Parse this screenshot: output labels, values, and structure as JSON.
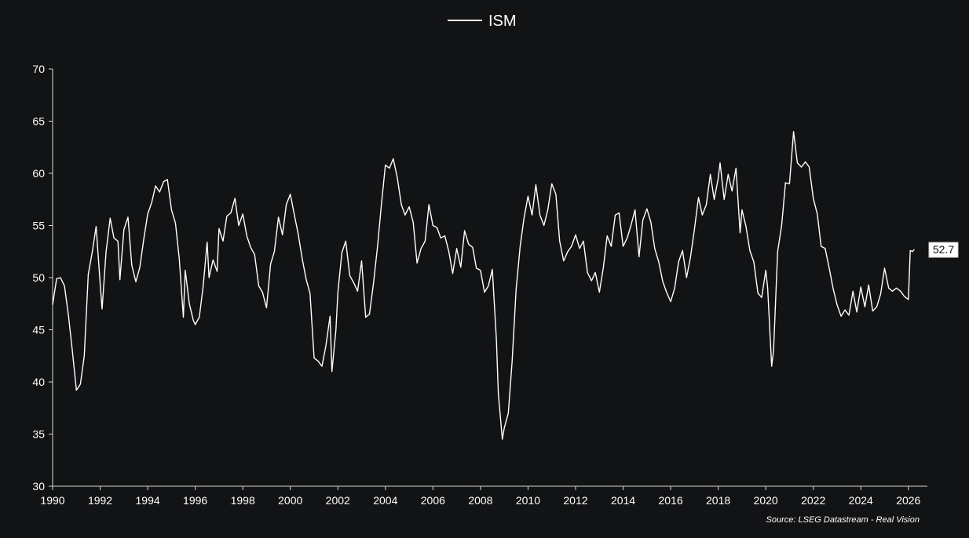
{
  "colors": {
    "background": "#121315",
    "line": "#ffffff",
    "axis": "#d8d8d8",
    "text": "#ffffff"
  },
  "chart_data": {
    "type": "line",
    "title": "",
    "xlabel": "",
    "ylabel": "",
    "legend": {
      "position": "top-center",
      "entries": [
        "ISM"
      ]
    },
    "grid": false,
    "xlim": [
      1990,
      2026.8
    ],
    "ylim": [
      30,
      70
    ],
    "x_ticks": [
      1990,
      1992,
      1994,
      1996,
      1998,
      2000,
      2002,
      2004,
      2006,
      2008,
      2010,
      2012,
      2014,
      2016,
      2018,
      2020,
      2022,
      2024,
      2026
    ],
    "y_ticks": [
      30,
      35,
      40,
      45,
      50,
      55,
      60,
      65,
      70
    ],
    "last_value_label": "52.7",
    "source": "Source: LSEG Datastream - Real Vision",
    "series": [
      {
        "name": "ISM",
        "points": [
          [
            1990.0,
            47.4
          ],
          [
            1990.17,
            49.9
          ],
          [
            1990.33,
            50.0
          ],
          [
            1990.5,
            49.2
          ],
          [
            1990.67,
            46.3
          ],
          [
            1990.83,
            43.0
          ],
          [
            1991.0,
            39.2
          ],
          [
            1991.17,
            39.8
          ],
          [
            1991.33,
            42.5
          ],
          [
            1991.5,
            50.3
          ],
          [
            1991.67,
            52.5
          ],
          [
            1991.83,
            54.9
          ],
          [
            1992.0,
            49.5
          ],
          [
            1992.08,
            47.0
          ],
          [
            1992.25,
            52.5
          ],
          [
            1992.42,
            55.7
          ],
          [
            1992.58,
            53.8
          ],
          [
            1992.75,
            53.5
          ],
          [
            1992.83,
            49.8
          ],
          [
            1993.0,
            54.6
          ],
          [
            1993.17,
            55.8
          ],
          [
            1993.33,
            51.2
          ],
          [
            1993.5,
            49.6
          ],
          [
            1993.67,
            51.0
          ],
          [
            1993.83,
            53.6
          ],
          [
            1994.0,
            56.1
          ],
          [
            1994.17,
            57.2
          ],
          [
            1994.33,
            58.8
          ],
          [
            1994.5,
            58.2
          ],
          [
            1994.67,
            59.2
          ],
          [
            1994.83,
            59.4
          ],
          [
            1995.0,
            56.5
          ],
          [
            1995.17,
            55.2
          ],
          [
            1995.33,
            51.8
          ],
          [
            1995.5,
            46.2
          ],
          [
            1995.58,
            50.7
          ],
          [
            1995.75,
            47.5
          ],
          [
            1995.92,
            45.9
          ],
          [
            1996.0,
            45.5
          ],
          [
            1996.17,
            46.2
          ],
          [
            1996.33,
            49.1
          ],
          [
            1996.5,
            53.4
          ],
          [
            1996.58,
            50.0
          ],
          [
            1996.75,
            51.7
          ],
          [
            1996.92,
            50.6
          ],
          [
            1997.0,
            54.7
          ],
          [
            1997.17,
            53.5
          ],
          [
            1997.33,
            55.9
          ],
          [
            1997.5,
            56.2
          ],
          [
            1997.67,
            57.6
          ],
          [
            1997.83,
            55.0
          ],
          [
            1998.0,
            56.1
          ],
          [
            1998.17,
            54.0
          ],
          [
            1998.33,
            52.9
          ],
          [
            1998.5,
            52.2
          ],
          [
            1998.67,
            49.2
          ],
          [
            1998.83,
            48.6
          ],
          [
            1999.0,
            47.1
          ],
          [
            1999.17,
            51.3
          ],
          [
            1999.33,
            52.5
          ],
          [
            1999.5,
            55.8
          ],
          [
            1999.67,
            54.1
          ],
          [
            1999.83,
            57.0
          ],
          [
            2000.0,
            58.0
          ],
          [
            2000.17,
            56.0
          ],
          [
            2000.33,
            54.2
          ],
          [
            2000.5,
            51.8
          ],
          [
            2000.67,
            49.8
          ],
          [
            2000.83,
            48.5
          ],
          [
            2001.0,
            42.3
          ],
          [
            2001.17,
            42.0
          ],
          [
            2001.33,
            41.5
          ],
          [
            2001.5,
            43.5
          ],
          [
            2001.67,
            46.3
          ],
          [
            2001.75,
            41.0
          ],
          [
            2001.92,
            45.0
          ],
          [
            2002.0,
            48.6
          ],
          [
            2002.17,
            52.4
          ],
          [
            2002.33,
            53.5
          ],
          [
            2002.5,
            50.2
          ],
          [
            2002.67,
            49.5
          ],
          [
            2002.83,
            48.7
          ],
          [
            2003.0,
            51.6
          ],
          [
            2003.17,
            46.2
          ],
          [
            2003.33,
            46.5
          ],
          [
            2003.5,
            49.5
          ],
          [
            2003.67,
            53.0
          ],
          [
            2003.83,
            57.0
          ],
          [
            2004.0,
            60.8
          ],
          [
            2004.17,
            60.5
          ],
          [
            2004.33,
            61.4
          ],
          [
            2004.5,
            59.6
          ],
          [
            2004.67,
            57.0
          ],
          [
            2004.83,
            56.0
          ],
          [
            2005.0,
            56.8
          ],
          [
            2005.17,
            55.3
          ],
          [
            2005.33,
            51.4
          ],
          [
            2005.5,
            52.8
          ],
          [
            2005.67,
            53.5
          ],
          [
            2005.83,
            57.0
          ],
          [
            2006.0,
            55.0
          ],
          [
            2006.17,
            54.8
          ],
          [
            2006.33,
            53.8
          ],
          [
            2006.5,
            54.0
          ],
          [
            2006.67,
            52.5
          ],
          [
            2006.83,
            50.4
          ],
          [
            2007.0,
            52.8
          ],
          [
            2007.17,
            51.0
          ],
          [
            2007.33,
            54.5
          ],
          [
            2007.5,
            53.2
          ],
          [
            2007.67,
            52.9
          ],
          [
            2007.83,
            50.9
          ],
          [
            2008.0,
            50.7
          ],
          [
            2008.17,
            48.6
          ],
          [
            2008.33,
            49.2
          ],
          [
            2008.5,
            50.8
          ],
          [
            2008.67,
            44.0
          ],
          [
            2008.75,
            38.9
          ],
          [
            2008.92,
            34.5
          ],
          [
            2009.0,
            35.6
          ],
          [
            2009.17,
            37.0
          ],
          [
            2009.33,
            42.0
          ],
          [
            2009.5,
            48.9
          ],
          [
            2009.67,
            53.0
          ],
          [
            2009.83,
            55.7
          ],
          [
            2010.0,
            57.8
          ],
          [
            2010.17,
            56.0
          ],
          [
            2010.33,
            58.9
          ],
          [
            2010.5,
            56.0
          ],
          [
            2010.67,
            55.0
          ],
          [
            2010.83,
            56.5
          ],
          [
            2011.0,
            59.0
          ],
          [
            2011.17,
            58.0
          ],
          [
            2011.33,
            53.5
          ],
          [
            2011.5,
            51.6
          ],
          [
            2011.67,
            52.5
          ],
          [
            2011.83,
            53.0
          ],
          [
            2012.0,
            54.1
          ],
          [
            2012.17,
            52.8
          ],
          [
            2012.33,
            53.5
          ],
          [
            2012.5,
            50.5
          ],
          [
            2012.67,
            49.7
          ],
          [
            2012.83,
            50.5
          ],
          [
            2013.0,
            48.6
          ],
          [
            2013.17,
            51.0
          ],
          [
            2013.33,
            54.0
          ],
          [
            2013.5,
            53.0
          ],
          [
            2013.67,
            56.0
          ],
          [
            2013.83,
            56.2
          ],
          [
            2014.0,
            53.0
          ],
          [
            2014.17,
            53.8
          ],
          [
            2014.33,
            55.0
          ],
          [
            2014.5,
            56.5
          ],
          [
            2014.67,
            52.0
          ],
          [
            2014.83,
            55.5
          ],
          [
            2015.0,
            56.6
          ],
          [
            2015.17,
            55.3
          ],
          [
            2015.33,
            52.8
          ],
          [
            2015.5,
            51.5
          ],
          [
            2015.67,
            49.6
          ],
          [
            2015.83,
            48.6
          ],
          [
            2016.0,
            47.7
          ],
          [
            2016.17,
            49.0
          ],
          [
            2016.33,
            51.5
          ],
          [
            2016.5,
            52.6
          ],
          [
            2016.67,
            50.0
          ],
          [
            2016.83,
            51.9
          ],
          [
            2017.0,
            54.6
          ],
          [
            2017.17,
            57.7
          ],
          [
            2017.33,
            56.0
          ],
          [
            2017.5,
            57.0
          ],
          [
            2017.67,
            59.9
          ],
          [
            2017.83,
            57.5
          ],
          [
            2018.0,
            59.5
          ],
          [
            2018.08,
            61.0
          ],
          [
            2018.25,
            57.5
          ],
          [
            2018.42,
            59.9
          ],
          [
            2018.58,
            58.3
          ],
          [
            2018.75,
            60.5
          ],
          [
            2018.92,
            54.3
          ],
          [
            2019.0,
            56.5
          ],
          [
            2019.17,
            54.9
          ],
          [
            2019.33,
            52.6
          ],
          [
            2019.5,
            51.5
          ],
          [
            2019.67,
            48.5
          ],
          [
            2019.83,
            48.1
          ],
          [
            2020.0,
            50.7
          ],
          [
            2020.08,
            49.0
          ],
          [
            2020.25,
            41.5
          ],
          [
            2020.33,
            43.0
          ],
          [
            2020.5,
            52.5
          ],
          [
            2020.67,
            55.0
          ],
          [
            2020.83,
            59.1
          ],
          [
            2021.0,
            59.0
          ],
          [
            2021.17,
            64.0
          ],
          [
            2021.33,
            61.0
          ],
          [
            2021.5,
            60.6
          ],
          [
            2021.67,
            61.1
          ],
          [
            2021.83,
            60.6
          ],
          [
            2022.0,
            57.6
          ],
          [
            2022.17,
            56.1
          ],
          [
            2022.33,
            53.0
          ],
          [
            2022.5,
            52.8
          ],
          [
            2022.67,
            50.9
          ],
          [
            2022.83,
            49.0
          ],
          [
            2023.0,
            47.4
          ],
          [
            2023.17,
            46.3
          ],
          [
            2023.33,
            46.9
          ],
          [
            2023.5,
            46.4
          ],
          [
            2023.67,
            48.7
          ],
          [
            2023.83,
            46.7
          ],
          [
            2024.0,
            49.1
          ],
          [
            2024.17,
            47.2
          ],
          [
            2024.33,
            49.3
          ],
          [
            2024.5,
            46.8
          ],
          [
            2024.67,
            47.2
          ],
          [
            2024.83,
            48.4
          ],
          [
            2025.0,
            50.9
          ],
          [
            2025.17,
            49.0
          ],
          [
            2025.33,
            48.7
          ],
          [
            2025.5,
            49.0
          ],
          [
            2025.67,
            48.7
          ],
          [
            2025.83,
            48.2
          ],
          [
            2026.0,
            47.9
          ],
          [
            2026.08,
            52.6
          ],
          [
            2026.17,
            52.5
          ],
          [
            2026.25,
            52.7
          ]
        ]
      }
    ]
  }
}
